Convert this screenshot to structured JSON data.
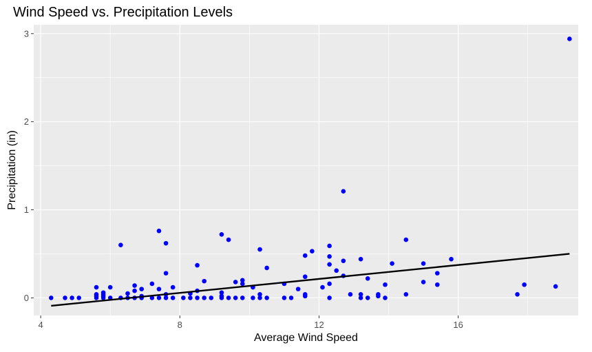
{
  "chart_data": {
    "type": "scatter",
    "title": "Wind Speed vs. Precipitation Levels",
    "xlabel": "Average Wind Speed",
    "ylabel": "Precipitation (in)",
    "xlim": [
      3.8,
      19.45
    ],
    "ylim": [
      -0.2,
      3.1
    ],
    "x_ticks": [
      4,
      8,
      12,
      16
    ],
    "y_ticks": [
      0,
      1,
      2,
      3
    ],
    "grid": true,
    "panel_background": "#ebebeb",
    "grid_color": "#ffffff",
    "point_color": "#0000ff",
    "line_color": "#000000",
    "points": [
      [
        4.3,
        0.0
      ],
      [
        4.7,
        0.0
      ],
      [
        4.9,
        0.0
      ],
      [
        5.1,
        0.0
      ],
      [
        5.6,
        0.12
      ],
      [
        5.6,
        0.04
      ],
      [
        5.6,
        0.02
      ],
      [
        5.6,
        0.0
      ],
      [
        5.8,
        0.06
      ],
      [
        5.8,
        0.02
      ],
      [
        5.8,
        0.0
      ],
      [
        5.8,
        0.04
      ],
      [
        6.0,
        0.12
      ],
      [
        6.0,
        0.0
      ],
      [
        6.3,
        0.6
      ],
      [
        6.3,
        0.0
      ],
      [
        6.5,
        0.05
      ],
      [
        6.5,
        0.0
      ],
      [
        6.7,
        0.14
      ],
      [
        6.7,
        0.08
      ],
      [
        6.7,
        0.0
      ],
      [
        6.9,
        0.1
      ],
      [
        6.9,
        0.02
      ],
      [
        6.9,
        0.0
      ],
      [
        7.2,
        0.16
      ],
      [
        7.2,
        0.0
      ],
      [
        7.4,
        0.76
      ],
      [
        7.4,
        0.1
      ],
      [
        7.4,
        0.0
      ],
      [
        7.6,
        0.62
      ],
      [
        7.6,
        0.28
      ],
      [
        7.6,
        0.04
      ],
      [
        7.6,
        0.0
      ],
      [
        7.8,
        0.12
      ],
      [
        7.8,
        0.0
      ],
      [
        8.1,
        0.0
      ],
      [
        8.3,
        0.05
      ],
      [
        8.3,
        0.0
      ],
      [
        8.5,
        0.37
      ],
      [
        8.5,
        0.08
      ],
      [
        8.5,
        0.0
      ],
      [
        8.7,
        0.19
      ],
      [
        8.7,
        0.0
      ],
      [
        8.9,
        0.0
      ],
      [
        9.2,
        0.72
      ],
      [
        9.2,
        0.06
      ],
      [
        9.2,
        0.02
      ],
      [
        9.2,
        0.0
      ],
      [
        9.4,
        0.66
      ],
      [
        9.4,
        0.0
      ],
      [
        9.6,
        0.18
      ],
      [
        9.6,
        0.0
      ],
      [
        9.8,
        0.2
      ],
      [
        9.8,
        0.16
      ],
      [
        9.8,
        0.0
      ],
      [
        10.1,
        0.12
      ],
      [
        10.1,
        0.0
      ],
      [
        10.3,
        0.55
      ],
      [
        10.3,
        0.04
      ],
      [
        10.3,
        0.0
      ],
      [
        10.5,
        0.34
      ],
      [
        10.5,
        0.0
      ],
      [
        11.0,
        0.16
      ],
      [
        11.0,
        0.0
      ],
      [
        11.2,
        0.0
      ],
      [
        11.4,
        0.1
      ],
      [
        11.6,
        0.48
      ],
      [
        11.6,
        0.24
      ],
      [
        11.6,
        0.04
      ],
      [
        11.6,
        0.02
      ],
      [
        11.8,
        0.53
      ],
      [
        12.1,
        0.12
      ],
      [
        12.3,
        0.59
      ],
      [
        12.3,
        0.47
      ],
      [
        12.3,
        0.38
      ],
      [
        12.3,
        0.16
      ],
      [
        12.3,
        0.0
      ],
      [
        12.5,
        0.31
      ],
      [
        12.7,
        1.21
      ],
      [
        12.7,
        0.42
      ],
      [
        12.7,
        0.25
      ],
      [
        12.9,
        0.04
      ],
      [
        13.2,
        0.44
      ],
      [
        13.2,
        0.04
      ],
      [
        13.2,
        0.0
      ],
      [
        13.4,
        0.22
      ],
      [
        13.4,
        0.0
      ],
      [
        13.7,
        0.04
      ],
      [
        13.7,
        0.02
      ],
      [
        13.9,
        0.15
      ],
      [
        13.9,
        0.0
      ],
      [
        14.1,
        0.39
      ],
      [
        14.5,
        0.66
      ],
      [
        14.5,
        0.04
      ],
      [
        15.0,
        0.39
      ],
      [
        15.0,
        0.18
      ],
      [
        15.4,
        0.28
      ],
      [
        15.4,
        0.15
      ],
      [
        15.8,
        0.44
      ],
      [
        17.7,
        0.04
      ],
      [
        17.9,
        0.15
      ],
      [
        18.8,
        0.13
      ],
      [
        19.2,
        2.94
      ]
    ],
    "trend_line": {
      "x": [
        4.3,
        19.2
      ],
      "y": [
        -0.09,
        0.5
      ]
    }
  }
}
